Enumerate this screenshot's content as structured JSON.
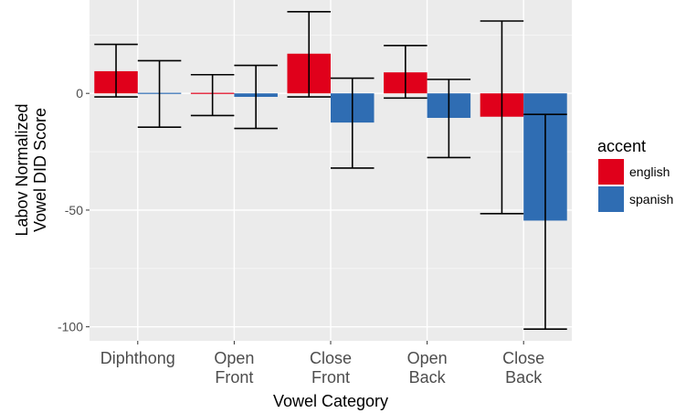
{
  "chart_data": {
    "type": "bar",
    "title": "",
    "xlabel": "Vowel Category",
    "ylabel_lines": [
      "Labov Normalized",
      "Vowel DID Score"
    ],
    "categories": [
      [
        "Diphthong"
      ],
      [
        "Open",
        "Front"
      ],
      [
        "Close",
        "Front"
      ],
      [
        "Open",
        "Back"
      ],
      [
        "Close",
        "Back"
      ]
    ],
    "series": [
      {
        "name": "english",
        "color": "#e0001b",
        "values": [
          9.5,
          0,
          17,
          9,
          -10
        ],
        "err_low": [
          -1.5,
          -9.5,
          -1.5,
          -2,
          -51.5
        ],
        "err_high": [
          21,
          8,
          35,
          20.5,
          31
        ]
      },
      {
        "name": "spanish",
        "color": "#2f6db3",
        "values": [
          0,
          -1.5,
          -12.5,
          -10.5,
          -54.5
        ],
        "err_low": [
          -14.5,
          -15,
          -32,
          -27.5,
          -101
        ],
        "err_high": [
          14,
          12,
          6.5,
          6,
          -9
        ]
      }
    ],
    "yticks": [
      -100,
      -50,
      0
    ],
    "ylim": [
      -106,
      40
    ],
    "grid": true,
    "legend": {
      "title": "accent",
      "position": "right",
      "entries": [
        "english",
        "spanish"
      ]
    }
  }
}
